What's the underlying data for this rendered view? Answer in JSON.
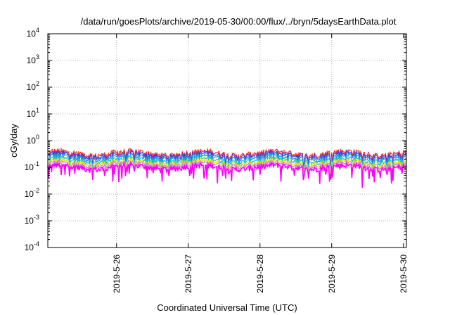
{
  "chart_data": {
    "type": "line",
    "title": "/data/run/goesPlots/archive/2019-05-30/00:00/flux/../bryn/5daysEarthData.plot",
    "xlabel": "Coordinated Universal Time (UTC)",
    "ylabel": "cGy/day",
    "yscale": "log",
    "ylim": [
      0.0001,
      10000
    ],
    "xlim": [
      "2019-05-25T01:00",
      "2019-05-30T01:00"
    ],
    "grid": true,
    "x_ticks": [
      "2019-5-26",
      "2019-5-27",
      "2019-5-28",
      "2019-5-29",
      "2019-5-30"
    ],
    "y_ticks": [
      {
        "value": 0.0001,
        "base": "10",
        "exp": "-4"
      },
      {
        "value": 0.001,
        "base": "10",
        "exp": "-3"
      },
      {
        "value": 0.01,
        "base": "10",
        "exp": "-2"
      },
      {
        "value": 0.1,
        "base": "10",
        "exp": "-1"
      },
      {
        "value": 1,
        "base": "10",
        "exp": "0"
      },
      {
        "value": 10,
        "base": "10",
        "exp": "1"
      },
      {
        "value": 100,
        "base": "10",
        "exp": "2"
      },
      {
        "value": 1000,
        "base": "10",
        "exp": "3"
      },
      {
        "value": 10000,
        "base": "10",
        "exp": "4"
      }
    ],
    "series": [
      {
        "color": "#ff2a2a",
        "level": 0.4
      },
      {
        "color": "#3a3ad6",
        "level": 0.34
      },
      {
        "color": "#2a8ae8",
        "level": 0.28
      },
      {
        "color": "#19c0c0",
        "level": 0.22
      },
      {
        "color": "#e6e600",
        "level": 0.18
      },
      {
        "color": "#d080d0",
        "level": 0.15
      },
      {
        "color": "#ff00ff",
        "level": 0.12
      }
    ]
  }
}
